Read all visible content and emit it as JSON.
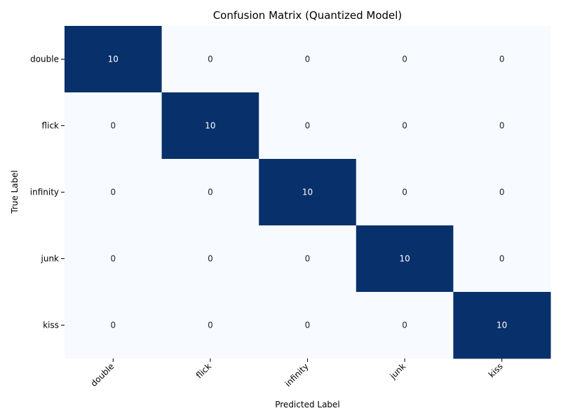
{
  "chart_data": {
    "type": "heatmap",
    "title": "Confusion Matrix (Quantized Model)",
    "xlabel": "Predicted Label",
    "ylabel": "True Label",
    "x_categories": [
      "double",
      "flick",
      "infinity",
      "junk",
      "kiss"
    ],
    "y_categories": [
      "double",
      "flick",
      "infinity",
      "junk",
      "kiss"
    ],
    "values": [
      [
        10,
        0,
        0,
        0,
        0
      ],
      [
        0,
        10,
        0,
        0,
        0
      ],
      [
        0,
        0,
        10,
        0,
        0
      ],
      [
        0,
        0,
        0,
        10,
        0
      ],
      [
        0,
        0,
        0,
        0,
        10
      ]
    ],
    "value_range": [
      0,
      10
    ],
    "colormap": "Blues",
    "color_low": "#f7fbff",
    "color_high": "#08306b",
    "annotation_color_light": "#ffffff",
    "annotation_color_dark": "#262626",
    "colorbar": false,
    "grid": false
  }
}
